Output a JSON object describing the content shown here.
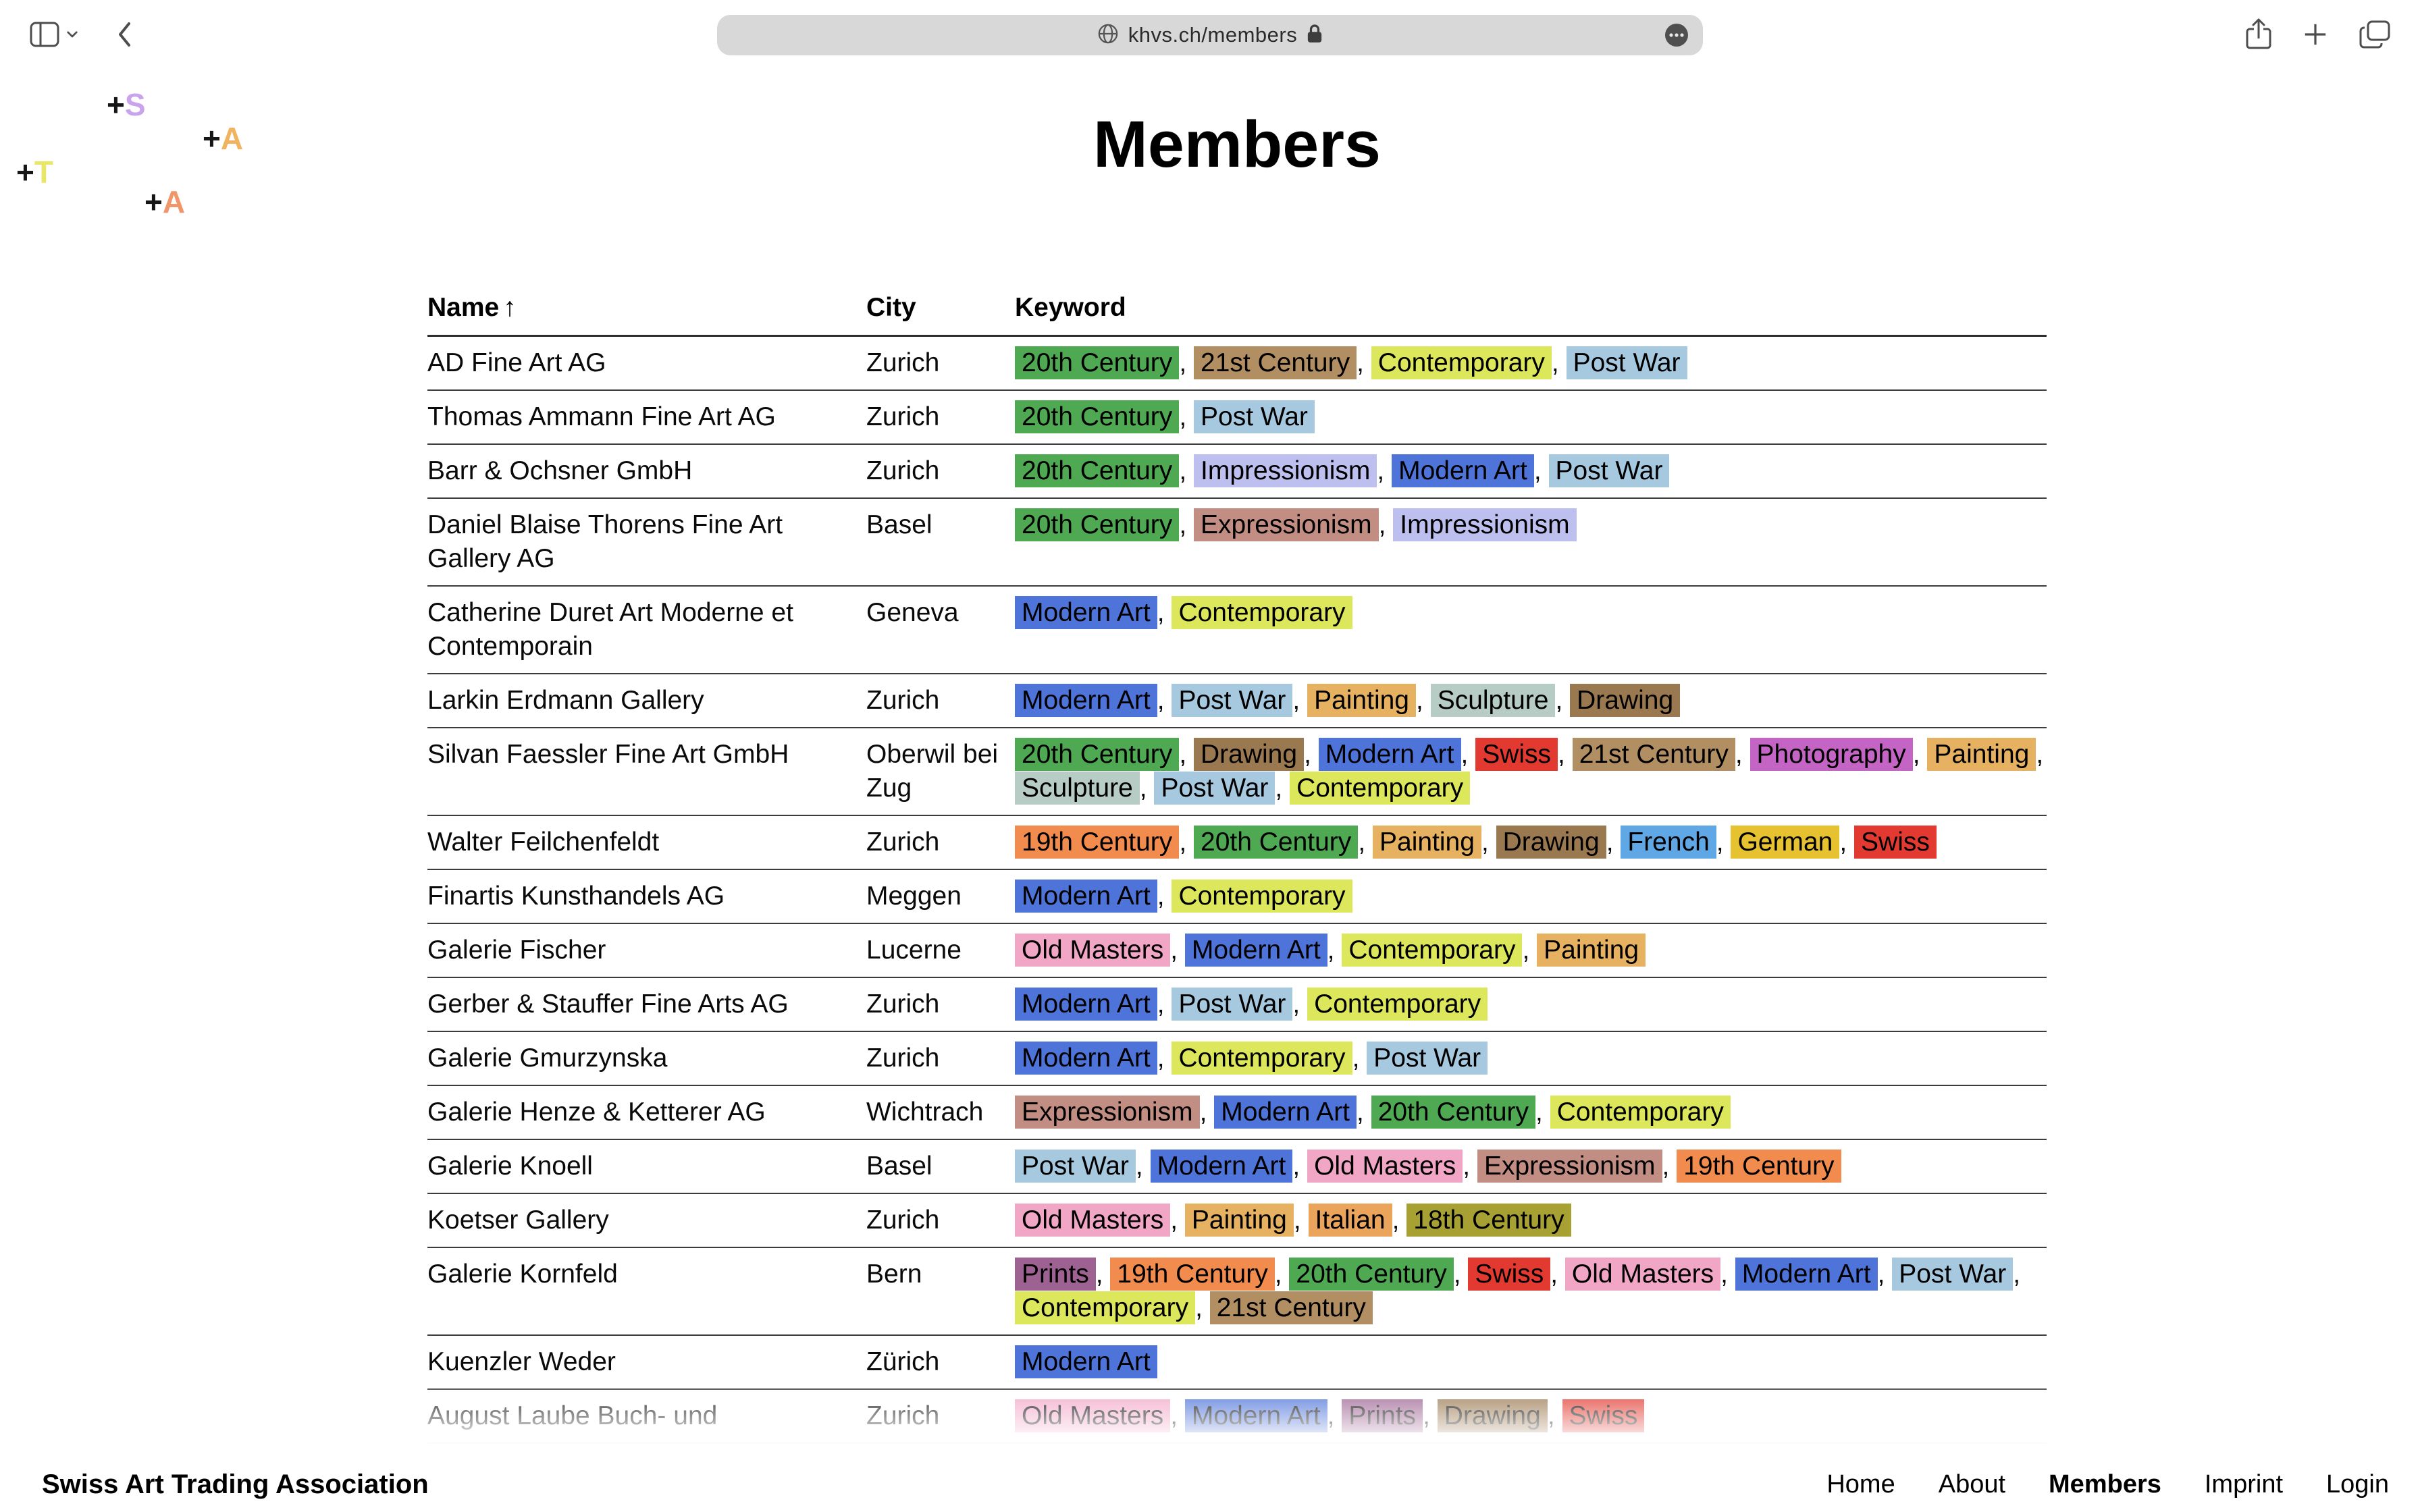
{
  "browser": {
    "url": "khvs.ch/members"
  },
  "logo_marks": [
    {
      "plus": "+",
      "letter": "S",
      "color": "#c9a3ec"
    },
    {
      "plus": "+",
      "letter": "A",
      "color": "#f2b35f"
    },
    {
      "plus": "+",
      "letter": "T",
      "color": "#e9e768"
    },
    {
      "plus": "+",
      "letter": "A",
      "color": "#f0966a"
    }
  ],
  "page": {
    "title": "Members"
  },
  "table": {
    "columns": [
      "Name",
      "City",
      "Keyword"
    ],
    "sort_indicator": "↑",
    "tag_colors": {
      "20th Century": "#4fa852",
      "21st Century": "#b28e63",
      "Contemporary": "#dde75c",
      "Post War": "#a6c9df",
      "Impressionism": "#bdbfee",
      "Modern Art": "#4e74da",
      "Expressionism": "#c28e83",
      "Painting": "#e6b261",
      "Sculpture": "#b7ccc4",
      "Drawing": "#9b7950",
      "Swiss": "#e23a31",
      "Photography": "#c464c4",
      "19th Century": "#f18c4e",
      "French": "#60a7e6",
      "German": "#e6c231",
      "Old Masters": "#f2a6c6",
      "Italian": "#eaa45c",
      "18th Century": "#a7a134",
      "Prints": "#9d6292"
    },
    "rows": [
      {
        "name": "AD Fine Art AG",
        "city": "Zurich",
        "keywords": [
          "20th Century",
          "21st Century",
          "Contemporary",
          "Post War"
        ]
      },
      {
        "name": "Thomas Ammann Fine Art AG",
        "city": "Zurich",
        "keywords": [
          "20th Century",
          "Post War"
        ]
      },
      {
        "name": "Barr & Ochsner GmbH",
        "city": "Zurich",
        "keywords": [
          "20th Century",
          "Impressionism",
          "Modern Art",
          "Post War"
        ]
      },
      {
        "name": "Daniel Blaise Thorens Fine Art Gallery AG",
        "city": "Basel",
        "keywords": [
          "20th Century",
          "Expressionism",
          "Impressionism"
        ]
      },
      {
        "name": "Catherine Duret Art Moderne et Contemporain",
        "city": "Geneva",
        "keywords": [
          "Modern Art",
          "Contemporary"
        ]
      },
      {
        "name": "Larkin Erdmann Gallery",
        "city": "Zurich",
        "keywords": [
          "Modern Art",
          "Post War",
          "Painting",
          "Sculpture",
          "Drawing"
        ]
      },
      {
        "name": "Silvan Faessler Fine Art GmbH",
        "city": "Oberwil bei Zug",
        "keywords": [
          "20th Century",
          "Drawing",
          "Modern Art",
          "Swiss",
          "21st Century",
          "Photography",
          "Painting",
          "Sculpture",
          "Post War",
          "Contemporary"
        ]
      },
      {
        "name": "Walter Feilchenfeldt",
        "city": "Zurich",
        "keywords": [
          "19th Century",
          "20th Century",
          "Painting",
          "Drawing",
          "French",
          "German",
          "Swiss"
        ]
      },
      {
        "name": "Finartis Kunsthandels AG",
        "city": "Meggen",
        "keywords": [
          "Modern Art",
          "Contemporary"
        ]
      },
      {
        "name": "Galerie Fischer",
        "city": "Lucerne",
        "keywords": [
          "Old Masters",
          "Modern Art",
          "Contemporary",
          "Painting"
        ]
      },
      {
        "name": "Gerber & Stauffer Fine Arts AG",
        "city": "Zurich",
        "keywords": [
          "Modern Art",
          "Post War",
          "Contemporary"
        ]
      },
      {
        "name": "Galerie Gmurzynska",
        "city": "Zurich",
        "keywords": [
          "Modern Art",
          "Contemporary",
          "Post War"
        ]
      },
      {
        "name": "Galerie Henze & Ketterer AG",
        "city": "Wichtrach",
        "keywords": [
          "Expressionism",
          "Modern Art",
          "20th Century",
          "Contemporary"
        ]
      },
      {
        "name": "Galerie Knoell",
        "city": "Basel",
        "keywords": [
          "Post War",
          "Modern Art",
          "Old Masters",
          "Expressionism",
          "19th Century"
        ]
      },
      {
        "name": "Koetser Gallery",
        "city": "Zurich",
        "keywords": [
          "Old Masters",
          "Painting",
          "Italian",
          "18th Century"
        ]
      },
      {
        "name": "Galerie Kornfeld",
        "city": "Bern",
        "keywords": [
          "Prints",
          "19th Century",
          "20th Century",
          "Swiss",
          "Old Masters",
          "Modern Art",
          "Post War",
          "Contemporary",
          "21st Century"
        ]
      },
      {
        "name": "Kuenzler Weder",
        "city": "Zürich",
        "keywords": [
          "Modern Art"
        ]
      },
      {
        "name": "August Laube Buch- und",
        "city": "Zurich",
        "keywords": [
          "Old Masters",
          "Modern Art",
          "Prints",
          "Drawing",
          "Swiss"
        ],
        "clipped": true
      }
    ]
  },
  "footer": {
    "brand": "Swiss Art Trading Association",
    "nav": [
      {
        "label": "Home",
        "active": false
      },
      {
        "label": "About",
        "active": false
      },
      {
        "label": "Members",
        "active": true
      },
      {
        "label": "Imprint",
        "active": false
      },
      {
        "label": "Login",
        "active": false
      }
    ]
  }
}
